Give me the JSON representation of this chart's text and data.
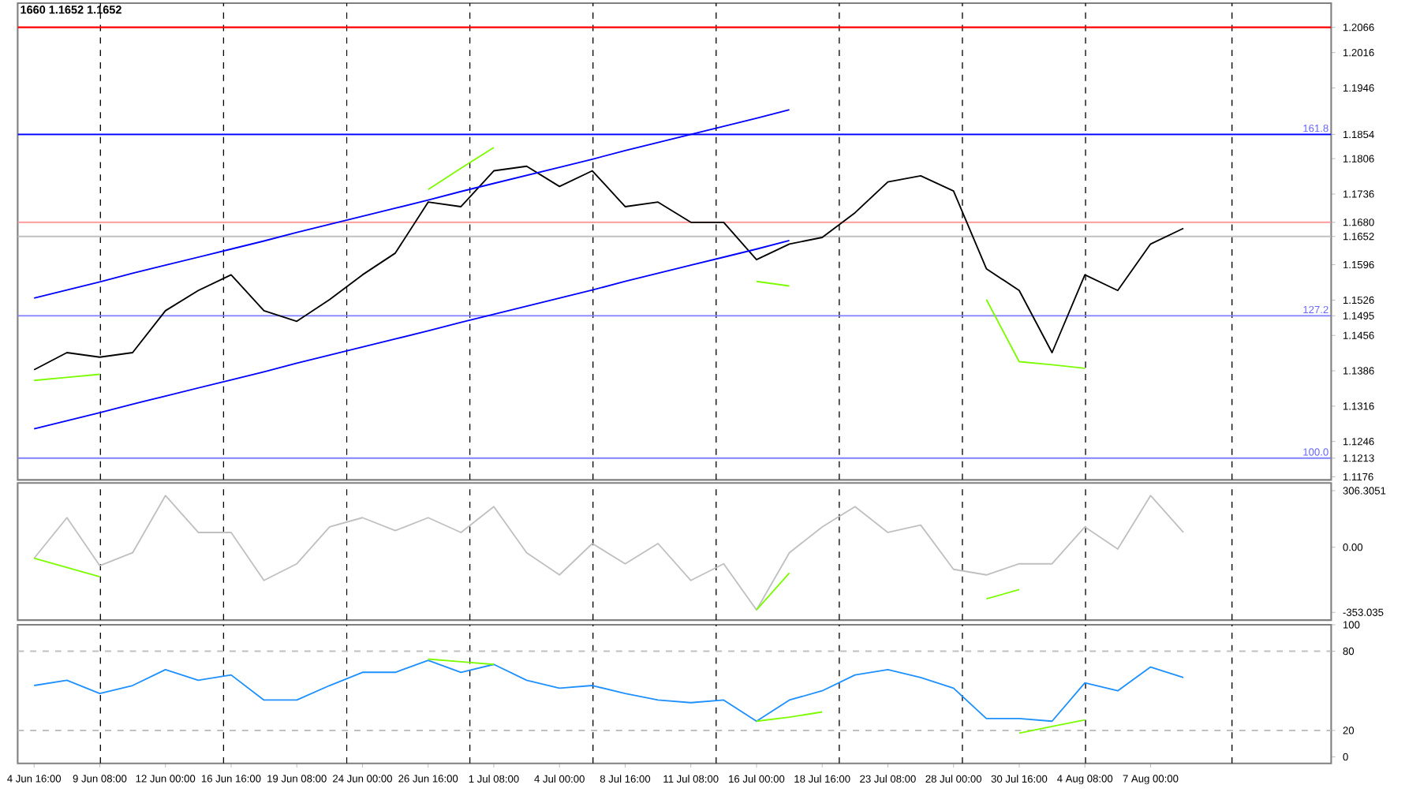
{
  "chart_data": [
    {
      "type": "line",
      "title": "1660 1.1652 1.1652",
      "tick_labels": "y",
      "grid": "x",
      "categories": [
        null,
        null,
        null,
        null,
        null,
        null,
        null,
        null,
        null,
        null,
        null,
        null,
        null,
        null,
        null,
        null,
        null,
        null,
        null,
        null,
        null,
        null,
        null,
        null,
        null,
        null,
        null,
        null,
        null,
        null,
        null,
        null,
        null,
        null,
        null,
        null,
        null,
        null,
        null,
        null
      ],
      "ylim": [
        1.117,
        1.2114
      ],
      "yticks": [
        1.2066,
        1.2016,
        1.1946,
        1.1854,
        1.1806,
        1.1736,
        {
          "value": 1.168,
          "label": "1.1680"
        },
        1.1652,
        1.1596,
        1.1526,
        1.1495,
        1.1456,
        1.1386,
        1.1316,
        1.1246,
        1.1213,
        1.1176
      ],
      "series": [
        {
          "color": "#000000",
          "values": [
            1.1388,
            1.1422,
            1.1413,
            1.1422,
            1.1505,
            1.1545,
            1.1576,
            1.1505,
            1.1484,
            1.1527,
            1.1576,
            1.1619,
            1.172,
            1.1711,
            1.1782,
            1.1791,
            1.1751,
            1.1782,
            1.1711,
            1.172,
            1.168,
            1.168,
            1.1606,
            1.1637,
            1.165,
            1.1699,
            1.176,
            1.1772,
            1.1742,
            1.1588,
            1.1545,
            1.1422,
            1.1576,
            1.1545,
            1.1637,
            1.1668,
            null,
            null,
            null,
            null
          ]
        },
        {
          "type": "line",
          "color": "#0000ff",
          "values": [
            1.153,
            1.1546,
            1.1562,
            1.1579,
            1.1595,
            1.1611,
            1.1627,
            1.1643,
            1.166,
            1.1676,
            1.1692,
            1.1708,
            1.1724,
            1.1741,
            1.1757,
            1.1773,
            1.1789,
            1.1805,
            1.1822,
            1.1838,
            1.1854,
            1.187,
            1.1886,
            1.1903,
            null,
            null,
            null,
            null,
            null,
            null,
            null,
            null,
            null,
            null,
            null,
            null,
            null,
            null,
            null,
            null
          ]
        },
        {
          "type": "line",
          "color": "#0000ff",
          "values": [
            1.1271,
            1.1287,
            1.1303,
            1.132,
            1.1336,
            1.1352,
            1.1368,
            1.1384,
            1.1401,
            1.1417,
            1.1433,
            1.1449,
            1.1465,
            1.1482,
            1.1498,
            1.1514,
            1.153,
            1.1546,
            1.1563,
            1.1579,
            1.1595,
            1.1611,
            1.1627,
            1.1644,
            null,
            null,
            null,
            null,
            null,
            null,
            null,
            null,
            null,
            null,
            null,
            null,
            null,
            null,
            null,
            null
          ]
        },
        {
          "type": "line",
          "color": "#7cfc00",
          "values": [
            1.1367,
            1.1373,
            1.1379,
            null,
            null,
            null,
            null,
            null,
            null,
            null,
            null,
            null,
            null,
            null,
            null,
            null,
            null,
            null,
            null,
            null,
            null,
            null,
            null,
            null,
            null,
            null,
            null,
            null,
            null,
            null,
            null,
            null,
            null,
            null,
            null,
            null,
            null,
            null,
            null,
            null
          ]
        },
        {
          "type": "line",
          "color": "#7cfc00",
          "values": [
            null,
            null,
            null,
            null,
            null,
            null,
            null,
            null,
            null,
            null,
            null,
            null,
            1.1745,
            1.1787,
            1.1828,
            null,
            null,
            null,
            null,
            null,
            null,
            null,
            null,
            null,
            null,
            null,
            null,
            null,
            null,
            null,
            null,
            null,
            null,
            null,
            null,
            null,
            null,
            null,
            null,
            null
          ]
        },
        {
          "type": "line",
          "color": "#7cfc00",
          "values": [
            null,
            null,
            null,
            null,
            null,
            null,
            null,
            null,
            null,
            null,
            null,
            null,
            null,
            null,
            null,
            null,
            null,
            null,
            null,
            null,
            null,
            null,
            1.1563,
            1.1554,
            null,
            null,
            null,
            null,
            null,
            null,
            null,
            null,
            null,
            null,
            null,
            null,
            null,
            null,
            null,
            null
          ]
        },
        {
          "type": "line",
          "color": "#7cfc00",
          "values": [
            null,
            null,
            null,
            null,
            null,
            null,
            null,
            null,
            null,
            null,
            null,
            null,
            null,
            null,
            null,
            null,
            null,
            null,
            null,
            null,
            null,
            null,
            null,
            null,
            null,
            null,
            null,
            null,
            null,
            1.1527,
            1.1404,
            1.1398,
            1.1391,
            null,
            null,
            null,
            null,
            null,
            null,
            null
          ]
        }
      ],
      "ref_lines": [
        {
          "axis": "y",
          "value": 1.2066,
          "color": "#ff0000"
        },
        {
          "axis": "y",
          "value": 1.1854,
          "color": "#0000ff"
        },
        {
          "axis": "y",
          "value": 1.168,
          "color": "#ff9999"
        },
        {
          "axis": "y",
          "value": 1.1652,
          "color": "#c0c0c0"
        },
        {
          "axis": "y",
          "value": 1.1495,
          "color": "#8080ff"
        },
        {
          "axis": "y",
          "value": 1.1213,
          "color": "#8080ff"
        }
      ],
      "annotations": [
        {
          "text": "161.8",
          "y": 1.1854
        },
        {
          "text": "127.2",
          "y": 1.1495
        },
        {
          "text": "100.0",
          "y": 1.1213
        }
      ]
    },
    {
      "type": "line",
      "tick_labels": "y",
      "grid": "x",
      "categories": [
        null,
        null,
        null,
        null,
        null,
        null,
        null,
        null,
        null,
        null,
        null,
        null,
        null,
        null,
        null,
        null,
        null,
        null,
        null,
        null,
        null,
        null,
        null,
        null,
        null,
        null,
        null,
        null,
        null,
        null,
        null,
        null,
        null,
        null,
        null,
        null,
        null,
        null,
        null,
        null
      ],
      "ylim": [
        -395,
        348
      ],
      "yticks": [
        306.3051,
        {
          "value": 0,
          "label": "0.00"
        },
        -353.035
      ],
      "series": [
        {
          "color": "#c0c0c0",
          "values": [
            -60,
            160,
            -100,
            -30,
            280,
            80,
            80,
            -180,
            -90,
            110,
            160,
            90,
            160,
            80,
            220,
            -30,
            -150,
            20,
            -90,
            20,
            -180,
            -90,
            -340,
            -30,
            110,
            220,
            80,
            120,
            -120,
            -150,
            -90,
            -90,
            110,
            -10,
            280,
            80,
            null,
            null,
            null,
            null
          ]
        },
        {
          "type": "line",
          "color": "#7cfc00",
          "values": [
            -60,
            -110,
            -160,
            null,
            null,
            null,
            null,
            null,
            null,
            null,
            null,
            null,
            null,
            null,
            null,
            null,
            null,
            null,
            null,
            null,
            null,
            null,
            null,
            null,
            null,
            null,
            null,
            null,
            null,
            null,
            null,
            null,
            null,
            null,
            null,
            null,
            null,
            null,
            null,
            null
          ]
        },
        {
          "type": "line",
          "color": "#7cfc00",
          "values": [
            null,
            null,
            null,
            null,
            null,
            null,
            null,
            null,
            null,
            null,
            null,
            null,
            null,
            null,
            null,
            null,
            null,
            null,
            null,
            null,
            null,
            null,
            -340,
            -140,
            null,
            null,
            null,
            null,
            null,
            null,
            null,
            null,
            null,
            null,
            null,
            null,
            null,
            null,
            null,
            null
          ]
        },
        {
          "type": "line",
          "color": "#7cfc00",
          "values": [
            null,
            null,
            null,
            null,
            null,
            null,
            null,
            null,
            null,
            null,
            null,
            null,
            null,
            null,
            null,
            null,
            null,
            null,
            null,
            null,
            null,
            null,
            null,
            null,
            null,
            null,
            null,
            null,
            null,
            -280,
            -230,
            null,
            null,
            null,
            null,
            null,
            null,
            null,
            null,
            null
          ]
        }
      ]
    },
    {
      "type": "line",
      "grid": "x",
      "categories": [
        "4 Jun 16:00",
        null,
        "9 Jun 08:00",
        null,
        "12 Jun 00:00",
        null,
        "16 Jun 16:00",
        null,
        "19 Jun 08:00",
        null,
        "24 Jun 00:00",
        null,
        "26 Jun 16:00",
        null,
        "1 Jul 08:00",
        null,
        "4 Jul 00:00",
        null,
        "8 Jul 16:00",
        null,
        "11 Jul 08:00",
        null,
        "16 Jul 00:00",
        null,
        "18 Jul 16:00",
        null,
        "23 Jul 08:00",
        null,
        "28 Jul 00:00",
        null,
        "30 Jul 16:00",
        null,
        "4 Aug 08:00",
        null,
        "7 Aug 00:00",
        null,
        null,
        null,
        null,
        null
      ],
      "ylim": [
        -5,
        100
      ],
      "yticks": [
        100,
        80,
        20,
        0
      ],
      "series": [
        {
          "color": "#1e90ff",
          "values": [
            54,
            58,
            48,
            54,
            66,
            58,
            62,
            43,
            43,
            54,
            64,
            64,
            73,
            64,
            70,
            58,
            52,
            54,
            48,
            43,
            41,
            43,
            27,
            43,
            50,
            62,
            66,
            60,
            52,
            29,
            29,
            27,
            56,
            50,
            68,
            60,
            null,
            null,
            null,
            null
          ]
        },
        {
          "type": "line",
          "color": "#7cfc00",
          "values": [
            null,
            null,
            null,
            null,
            null,
            null,
            null,
            null,
            null,
            null,
            null,
            null,
            74,
            72,
            70,
            null,
            null,
            null,
            null,
            null,
            null,
            null,
            null,
            null,
            null,
            null,
            null,
            null,
            null,
            null,
            null,
            null,
            null,
            null,
            null,
            null,
            null,
            null,
            null,
            null
          ]
        },
        {
          "type": "line",
          "color": "#7cfc00",
          "values": [
            null,
            null,
            null,
            null,
            null,
            null,
            null,
            null,
            null,
            null,
            null,
            null,
            null,
            null,
            null,
            null,
            null,
            null,
            null,
            null,
            null,
            null,
            27,
            30,
            34,
            null,
            null,
            null,
            null,
            null,
            null,
            null,
            null,
            null,
            null,
            null,
            null,
            null,
            null,
            null
          ]
        },
        {
          "type": "line",
          "color": "#7cfc00",
          "values": [
            null,
            null,
            null,
            null,
            null,
            null,
            null,
            null,
            null,
            null,
            null,
            null,
            null,
            null,
            null,
            null,
            null,
            null,
            null,
            null,
            null,
            null,
            null,
            null,
            null,
            null,
            null,
            null,
            null,
            null,
            18,
            23,
            28,
            null,
            null,
            null,
            null,
            null,
            null,
            null
          ]
        }
      ],
      "ref_lines": [
        {
          "axis": "y",
          "value": 80,
          "color": "#c0c0c0",
          "line_style": "dashed"
        },
        {
          "axis": "y",
          "value": 20,
          "color": "#c0c0c0",
          "line_style": "dashed"
        }
      ]
    }
  ]
}
